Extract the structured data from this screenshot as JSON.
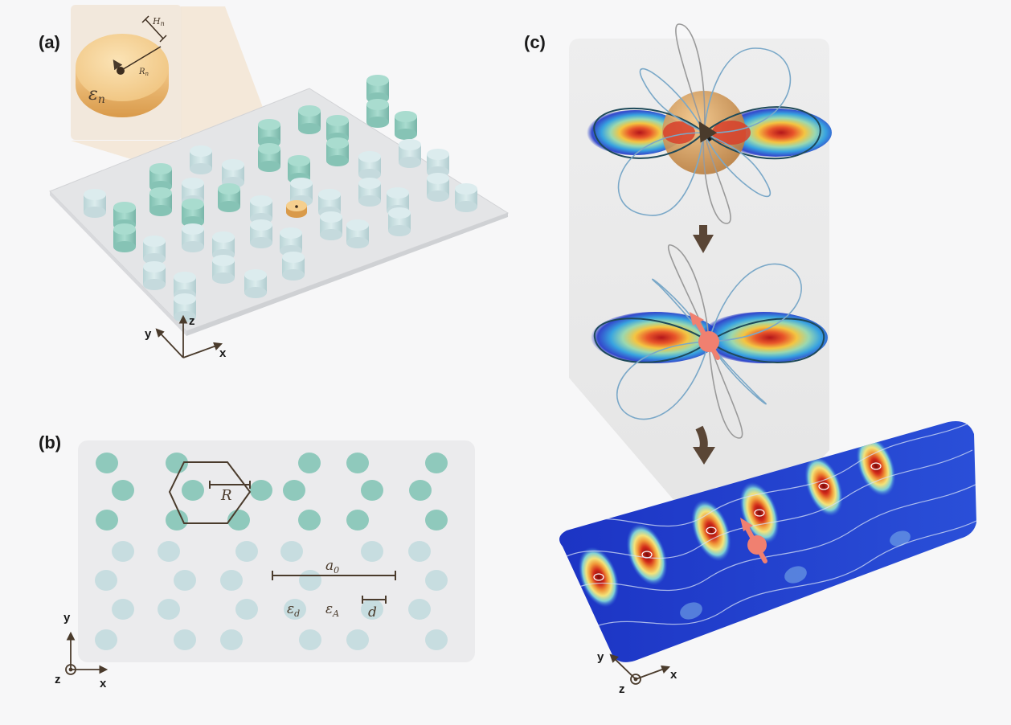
{
  "panels": {
    "a": {
      "label": "(a)",
      "inset": {
        "height_symbol": "H",
        "height_sub": "n",
        "radius_symbol": "R",
        "radius_sub": "n",
        "permittivity_symbol": "ε",
        "permittivity_sub": "n"
      },
      "axes": {
        "x": "x",
        "y": "y",
        "z": "z"
      }
    },
    "b": {
      "label": "(b)",
      "hex_label": "R",
      "lattice_label": {
        "symbol": "a",
        "sub": "0"
      },
      "eps_d": {
        "symbol": "ε",
        "sub": "d"
      },
      "eps_A": {
        "symbol": "ε",
        "sub": "A"
      },
      "d_label": "d",
      "axes": {
        "x": "x",
        "y": "y",
        "z": "z"
      }
    },
    "c": {
      "label": "(c)",
      "axes": {
        "x": "x",
        "y": "y",
        "z": "z"
      }
    }
  },
  "colors": {
    "teal": "#8fc9bc",
    "pale_teal": "#c7dde0",
    "gold": "#e8b36a",
    "brown": "#5a4636",
    "hot": "#c0251a",
    "cold": "#1d3fbf",
    "dipole": "#f08070"
  }
}
